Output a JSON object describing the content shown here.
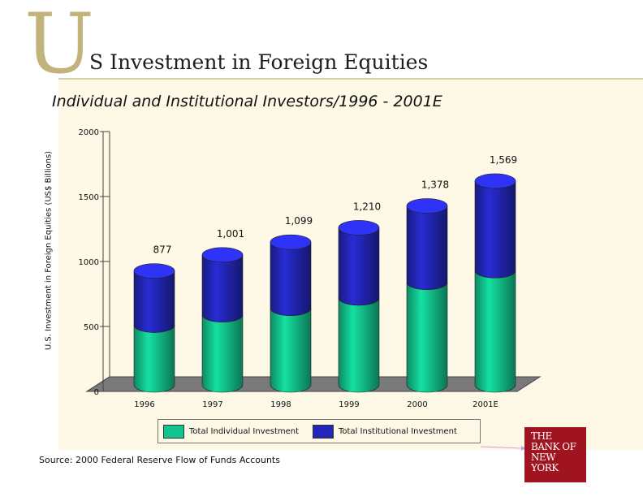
{
  "slide": {
    "title_initial": "U",
    "title_rest": "S Investment in Foreign Equities",
    "subtitle": "Individual and Institutional Investors/1996 - 2001E",
    "source": "Source: 2000 Federal Reserve Flow of Funds Accounts",
    "logo_lines": [
      "THE",
      "BANK OF",
      "NEW",
      "YORK"
    ]
  },
  "colors": {
    "individual": "#12c48e",
    "institutional": "#2326b8"
  },
  "chart_data": {
    "type": "bar",
    "stacked": true,
    "three_d": true,
    "categories": [
      "1996",
      "1997",
      "1998",
      "1999",
      "2000",
      "2001E"
    ],
    "series": [
      {
        "name": "Total Individual Investment",
        "values": [
          460,
          540,
          590,
          670,
          790,
          880
        ]
      },
      {
        "name": "Total Institutional Investment",
        "values": [
          417,
          461,
          509,
          540,
          588,
          689
        ]
      }
    ],
    "totals": [
      877,
      1001,
      1099,
      1210,
      1378,
      1569
    ],
    "total_labels": [
      "877",
      "1,001",
      "1,099",
      "1,210",
      "1,378",
      "1,569"
    ],
    "ylabel": "U.S. Investment in Foreign Equities (US$ Billions)",
    "ylim": [
      0,
      2000
    ],
    "yticks": [
      0,
      500,
      1000,
      1500,
      2000
    ],
    "ytick_labels": [
      "0",
      "500",
      "1000",
      "1500",
      "2000"
    ],
    "legend_position": "bottom"
  }
}
